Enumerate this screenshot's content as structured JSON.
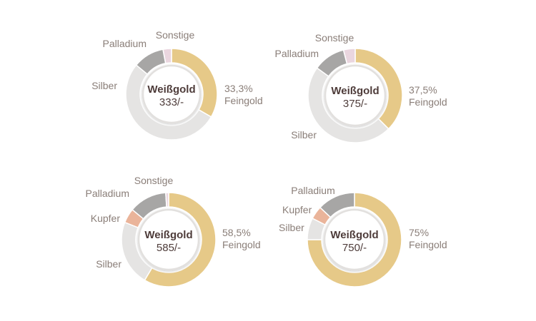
{
  "chart_data": [
    {
      "type": "donut",
      "title": "Weißgold",
      "value_label": "333/-",
      "primary_label": "33,3%",
      "primary_sublabel": "Feingold",
      "slices": [
        {
          "name": "Feingold",
          "value": 33.3,
          "color": "#e6c988"
        },
        {
          "name": "Silber",
          "value": 52.7,
          "color": "#e5e4e3"
        },
        {
          "name": "Palladium",
          "value": 11.0,
          "color": "#a7a6a5"
        },
        {
          "name": "Sonstige",
          "value": 3.0,
          "color": "#ead6df"
        }
      ]
    },
    {
      "type": "donut",
      "title": "Weißgold",
      "value_label": "375/-",
      "primary_label": "37,5%",
      "primary_sublabel": "Feingold",
      "slices": [
        {
          "name": "Feingold",
          "value": 37.5,
          "color": "#e6c988"
        },
        {
          "name": "Silber",
          "value": 47.5,
          "color": "#e5e4e3"
        },
        {
          "name": "Palladium",
          "value": 11.0,
          "color": "#a7a6a5"
        },
        {
          "name": "Sonstige",
          "value": 4.0,
          "color": "#ead6df"
        }
      ]
    },
    {
      "type": "donut",
      "title": "Weißgold",
      "value_label": "585/-",
      "primary_label": "58,5%",
      "primary_sublabel": "Feingold",
      "slices": [
        {
          "name": "Feingold",
          "value": 58.5,
          "color": "#e6c988"
        },
        {
          "name": "Silber",
          "value": 22.5,
          "color": "#e5e4e3"
        },
        {
          "name": "Kupfer",
          "value": 5.0,
          "color": "#eab49a"
        },
        {
          "name": "Palladium",
          "value": 13.0,
          "color": "#a7a6a5"
        },
        {
          "name": "Sonstige",
          "value": 1.0,
          "color": "#ead6df"
        }
      ]
    },
    {
      "type": "donut",
      "title": "Weißgold",
      "value_label": "750/-",
      "primary_label": "75%",
      "primary_sublabel": "Feingold",
      "slices": [
        {
          "name": "Feingold",
          "value": 75.0,
          "color": "#e6c988"
        },
        {
          "name": "Silber",
          "value": 7.5,
          "color": "#e5e4e3"
        },
        {
          "name": "Kupfer",
          "value": 4.5,
          "color": "#eab49a"
        },
        {
          "name": "Palladium",
          "value": 13.0,
          "color": "#a7a6a5"
        }
      ]
    }
  ]
}
